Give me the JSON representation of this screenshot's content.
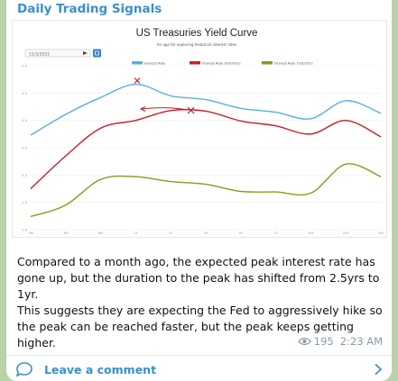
{
  "message": {
    "channel_name": "Daily Trading Signals",
    "paragraph1": "Compared to a month ago, the expected peak interest rate has gone up, but the duration to the peak has shifted from 2.5yrs to 1yr.",
    "paragraph2": "This suggests they are expecting the Fed to aggressively hike so the peak can be reached faster, but the peak keeps getting higher.",
    "views": "195",
    "time": "2:23 AM"
  },
  "footer": {
    "comment_label": "Leave a comment"
  },
  "icons": {
    "views": "eye-icon",
    "comment": "speech-bubble-icon",
    "chevron": "chevron-right-icon"
  },
  "chart_data": {
    "type": "line",
    "title": "US Treasuries Yield Curve",
    "subtitle": "An app for exploring historical interest rates",
    "date_input": "11/3/2022",
    "categories": [
      "1M",
      "3M",
      "6M",
      "1Y",
      "2Y",
      "3Y",
      "5Y",
      "7Y",
      "10Y",
      "20Y",
      "30Y"
    ],
    "legend_position": "top",
    "series": [
      {
        "name": "Interest Rate",
        "color": "#5aaee0",
        "values": [
          3.73,
          4.11,
          4.42,
          4.66,
          4.45,
          4.38,
          4.22,
          4.15,
          4.03,
          4.36,
          4.13
        ]
      },
      {
        "name": "Interest Rate 9/29/2022",
        "color": "#c81e28",
        "values": [
          2.75,
          3.35,
          3.86,
          4.0,
          4.18,
          4.17,
          3.99,
          3.9,
          3.75,
          4.0,
          3.7
        ]
      },
      {
        "name": "Interest Rate 7/29/2022",
        "color": "#8a9a1e",
        "values": [
          2.24,
          2.45,
          2.92,
          2.97,
          2.88,
          2.83,
          2.7,
          2.69,
          2.67,
          3.2,
          2.97
        ]
      }
    ],
    "ylim": [
      2.0,
      5.0
    ],
    "yticks": [
      2.0,
      2.5,
      3.0,
      3.5,
      4.0,
      4.5,
      5.0
    ],
    "grid": true
  }
}
